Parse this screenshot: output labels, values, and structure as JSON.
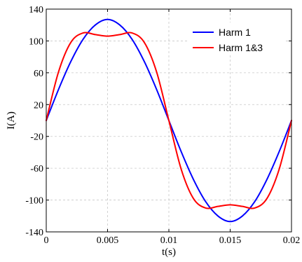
{
  "chart_data": {
    "type": "line",
    "xlabel": "t(s)",
    "ylabel": "I(A)",
    "xlim": [
      0,
      0.02
    ],
    "ylim": [
      -140,
      140
    ],
    "xticks": [
      "0",
      "0.005",
      "0.01",
      "0.015",
      "0.02"
    ],
    "yticks": [
      "140",
      "100",
      "60",
      "20",
      "-20",
      "-60",
      "-100",
      "-140"
    ],
    "grid": true,
    "legend_position": "top-right",
    "series": [
      {
        "name": "Harm 1",
        "color": "#0000ff",
        "x": [
          0,
          0.001,
          0.002,
          0.003,
          0.004,
          0.005,
          0.006,
          0.007,
          0.008,
          0.009,
          0.01,
          0.011,
          0.012,
          0.013,
          0.014,
          0.015,
          0.016,
          0.017,
          0.018,
          0.019,
          0.02
        ],
        "values": [
          0,
          39,
          74,
          102,
          120,
          127,
          120,
          102,
          74,
          39,
          0,
          -39,
          -74,
          -102,
          -120,
          -127,
          -120,
          -102,
          -74,
          -39,
          0
        ]
      },
      {
        "name": "Harm 1&3",
        "color": "#ff0000",
        "x": [
          0,
          0.001,
          0.002,
          0.003,
          0.004,
          0.005,
          0.006,
          0.007,
          0.008,
          0.009,
          0.01,
          0.011,
          0.012,
          0.013,
          0.014,
          0.015,
          0.016,
          0.017,
          0.018,
          0.019,
          0.02
        ],
        "values": [
          0,
          61,
          98,
          110,
          108,
          106,
          108,
          110,
          98,
          61,
          0,
          -61,
          -98,
          -110,
          -108,
          -106,
          -108,
          -110,
          -98,
          -61,
          0
        ]
      }
    ]
  }
}
